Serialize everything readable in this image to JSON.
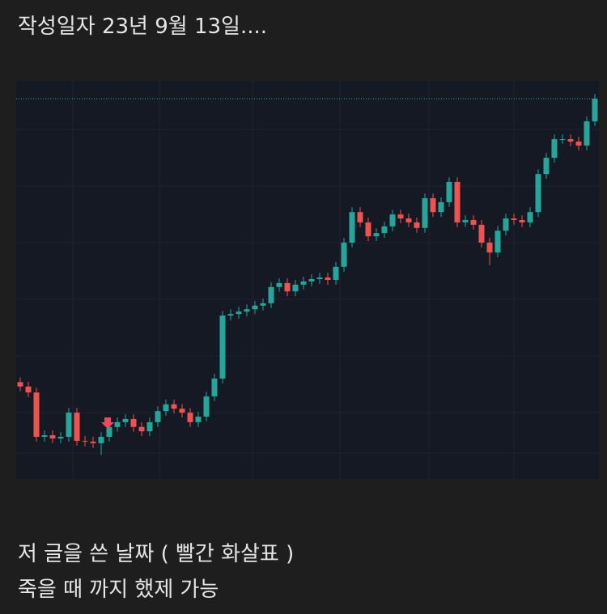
{
  "header": "작성일자 23년 9월 13일....",
  "chart_data": {
    "type": "candlestick",
    "ylim": [
      0,
      100
    ],
    "up_color": "#26a69a",
    "down_color": "#ef5350",
    "open": [
      24.0,
      22.9,
      21.4,
      10.2,
      10.6,
      9.8,
      10.2,
      16.3,
      9.2,
      9.0,
      8.6,
      10.2,
      12.7,
      13.9,
      14.7,
      12.7,
      11.6,
      13.9,
      16.7,
      18.4,
      17.3,
      16.3,
      13.9,
      15.3,
      20.4,
      24.9,
      40.8,
      41.2,
      41.8,
      42.4,
      43.3,
      43.9,
      48.0,
      49.0,
      46.9,
      48.6,
      49.4,
      50.0,
      50.4,
      49.8,
      53.1,
      59.2,
      66.9,
      64.3,
      60.8,
      61.6,
      63.3,
      66.3,
      65.3,
      64.3,
      62.9,
      70.4,
      66.9,
      69.4,
      74.5,
      64.3,
      64.9,
      63.7,
      59.2,
      56.7,
      62.2,
      65.3,
      64.9,
      64.3,
      66.9,
      76.5,
      80.6,
      85.3,
      85.3,
      84.7,
      83.7,
      89.8
    ],
    "high": [
      25.2,
      24.1,
      22.6,
      11.8,
      11.8,
      11.4,
      17.5,
      17.5,
      10.4,
      10.2,
      11.4,
      13.9,
      15.1,
      15.9,
      15.9,
      13.9,
      15.1,
      17.9,
      19.6,
      19.6,
      18.5,
      17.5,
      16.5,
      21.6,
      26.1,
      42.0,
      42.4,
      43.0,
      43.6,
      44.5,
      45.1,
      49.2,
      50.2,
      50.2,
      49.8,
      50.6,
      51.2,
      51.6,
      51.6,
      54.3,
      60.4,
      68.1,
      68.1,
      65.5,
      62.8,
      64.5,
      67.5,
      67.5,
      66.5,
      65.5,
      71.6,
      71.6,
      70.6,
      75.7,
      75.7,
      66.1,
      66.1,
      64.9,
      60.4,
      63.4,
      66.5,
      66.5,
      66.1,
      68.1,
      77.7,
      81.8,
      86.5,
      86.5,
      86.5,
      85.9,
      91.0,
      96.7
    ],
    "low": [
      21.7,
      20.2,
      9.0,
      9.0,
      8.6,
      8.6,
      9.0,
      8.0,
      7.8,
      7.4,
      5.6,
      9.0,
      11.5,
      12.7,
      11.5,
      10.4,
      10.4,
      12.7,
      15.5,
      16.1,
      15.1,
      12.7,
      12.7,
      14.1,
      19.2,
      23.7,
      39.6,
      40.0,
      40.6,
      41.2,
      42.1,
      42.7,
      46.8,
      45.7,
      45.7,
      47.4,
      48.2,
      48.8,
      48.6,
      48.6,
      51.9,
      58.0,
      63.1,
      59.6,
      59.6,
      60.4,
      62.1,
      64.1,
      63.1,
      61.7,
      61.7,
      65.7,
      65.7,
      68.2,
      63.1,
      63.1,
      62.5,
      58.0,
      53.5,
      55.5,
      61.0,
      63.7,
      63.1,
      63.1,
      65.7,
      75.3,
      79.4,
      84.1,
      83.5,
      82.5,
      82.5,
      88.6
    ],
    "close": [
      22.9,
      21.4,
      10.2,
      10.6,
      9.8,
      10.2,
      16.3,
      9.2,
      9.0,
      8.6,
      10.2,
      12.7,
      13.9,
      14.7,
      12.7,
      11.6,
      13.9,
      16.7,
      18.4,
      17.3,
      16.3,
      13.9,
      15.3,
      20.4,
      24.9,
      40.8,
      41.2,
      41.8,
      42.4,
      43.3,
      43.9,
      48.0,
      49.0,
      46.9,
      48.6,
      49.4,
      50.0,
      50.4,
      49.8,
      53.1,
      59.2,
      66.9,
      64.3,
      60.8,
      61.6,
      63.3,
      66.3,
      65.3,
      64.3,
      62.9,
      70.4,
      66.9,
      69.4,
      74.5,
      64.3,
      64.9,
      63.7,
      59.2,
      56.7,
      62.2,
      65.3,
      64.9,
      64.3,
      66.9,
      76.5,
      80.6,
      85.3,
      85.3,
      84.7,
      83.7,
      89.8,
      95.5
    ]
  },
  "caption": [
    "저 글을 쓴 날짜 ( 빨간 화살표 )",
    "죽을 때 까지 했제 가능"
  ]
}
